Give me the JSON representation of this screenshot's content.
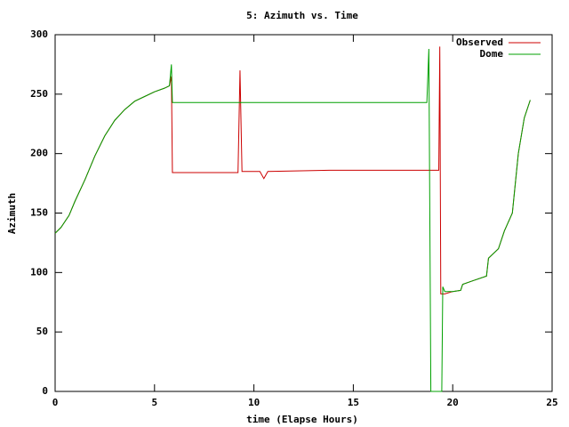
{
  "chart_data": {
    "type": "line",
    "title": "5: Azimuth vs. Time",
    "x_label": "time (Elapse Hours)",
    "y_label": "Azimuth",
    "x": [
      0,
      0.3,
      0.7,
      1,
      1.5,
      2,
      2.5,
      3,
      3.5,
      4,
      4.5,
      5,
      5.5,
      5.75,
      5.85,
      5.9,
      9.2,
      9.3,
      9.4,
      9.45,
      10.3,
      10.5,
      10.7,
      13.8,
      18.7,
      18.8,
      18.9,
      19.3,
      19.35,
      19.4,
      19.45,
      19.5,
      19.6,
      20,
      20.4,
      20.5,
      21,
      21.7,
      21.8,
      22.3,
      22.6,
      23,
      23.3,
      23.6,
      23.9
    ],
    "series": [
      {
        "name": "Observed",
        "color": "#cc0000",
        "values": [
          133,
          138,
          148,
          160,
          178,
          198,
          215,
          228,
          237,
          244,
          248,
          252,
          255,
          257,
          265,
          184,
          184,
          270,
          185,
          185,
          185,
          179,
          185,
          186,
          186,
          186,
          186,
          186,
          290,
          82,
          82,
          82,
          82,
          84,
          85,
          90,
          93,
          97,
          112,
          120,
          135,
          150,
          200,
          230,
          245
        ]
      },
      {
        "name": "Dome",
        "color": "#00a000",
        "values": [
          133,
          138,
          148,
          160,
          178,
          198,
          215,
          228,
          237,
          244,
          248,
          252,
          255,
          257,
          275,
          243,
          243,
          243,
          243,
          243,
          243,
          243,
          243,
          243,
          243,
          288,
          0,
          0,
          0,
          0,
          0,
          88,
          84,
          84,
          85,
          90,
          93,
          97,
          112,
          120,
          135,
          150,
          200,
          230,
          245
        ]
      }
    ],
    "xlim": [
      0,
      25
    ],
    "xticks": [
      0,
      5,
      10,
      15,
      20,
      25
    ],
    "ylim": [
      0,
      300
    ],
    "yticks": [
      0,
      50,
      100,
      150,
      200,
      250,
      300
    ],
    "legend": "upper right"
  }
}
